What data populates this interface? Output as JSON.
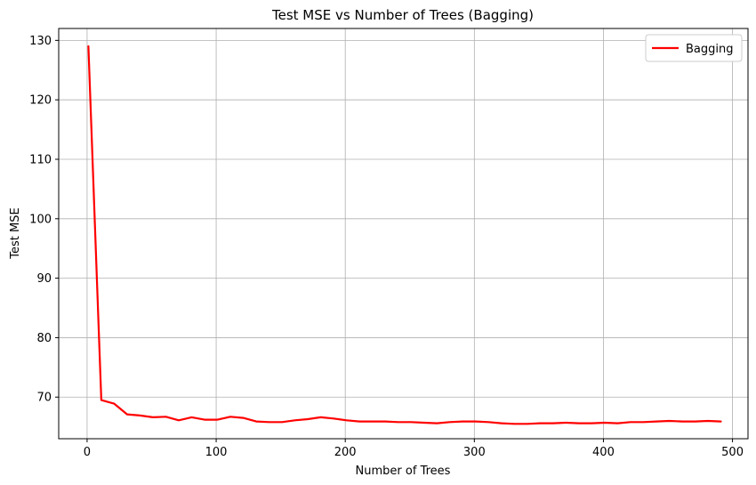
{
  "chart_data": {
    "type": "line",
    "title": "Test MSE vs Number of Trees (Bagging)",
    "xlabel": "Number of Trees",
    "ylabel": "Test MSE",
    "xlim": [
      -22,
      512
    ],
    "ylim": [
      63,
      132
    ],
    "xticks": [
      0,
      100,
      200,
      300,
      400,
      500
    ],
    "yticks": [
      70,
      80,
      90,
      100,
      110,
      120,
      130
    ],
    "grid": true,
    "legend_position": "top-right",
    "series": [
      {
        "name": "Bagging",
        "color": "#ff0000",
        "x": [
          1,
          11,
          21,
          31,
          41,
          51,
          61,
          71,
          81,
          91,
          101,
          111,
          121,
          131,
          141,
          151,
          161,
          171,
          181,
          191,
          201,
          211,
          221,
          231,
          241,
          251,
          261,
          271,
          281,
          291,
          301,
          311,
          321,
          331,
          341,
          351,
          361,
          371,
          381,
          391,
          401,
          411,
          421,
          431,
          441,
          451,
          461,
          471,
          481,
          491
        ],
        "y": [
          129.0,
          69.5,
          68.9,
          67.1,
          66.9,
          66.6,
          66.7,
          66.1,
          66.6,
          66.2,
          66.2,
          66.7,
          66.5,
          65.9,
          65.8,
          65.8,
          66.1,
          66.3,
          66.6,
          66.4,
          66.1,
          65.9,
          65.9,
          65.9,
          65.8,
          65.8,
          65.7,
          65.6,
          65.8,
          65.9,
          65.9,
          65.8,
          65.6,
          65.5,
          65.5,
          65.6,
          65.6,
          65.7,
          65.6,
          65.6,
          65.7,
          65.6,
          65.8,
          65.8,
          65.9,
          66.0,
          65.9,
          65.9,
          66.0,
          65.9
        ]
      }
    ]
  }
}
